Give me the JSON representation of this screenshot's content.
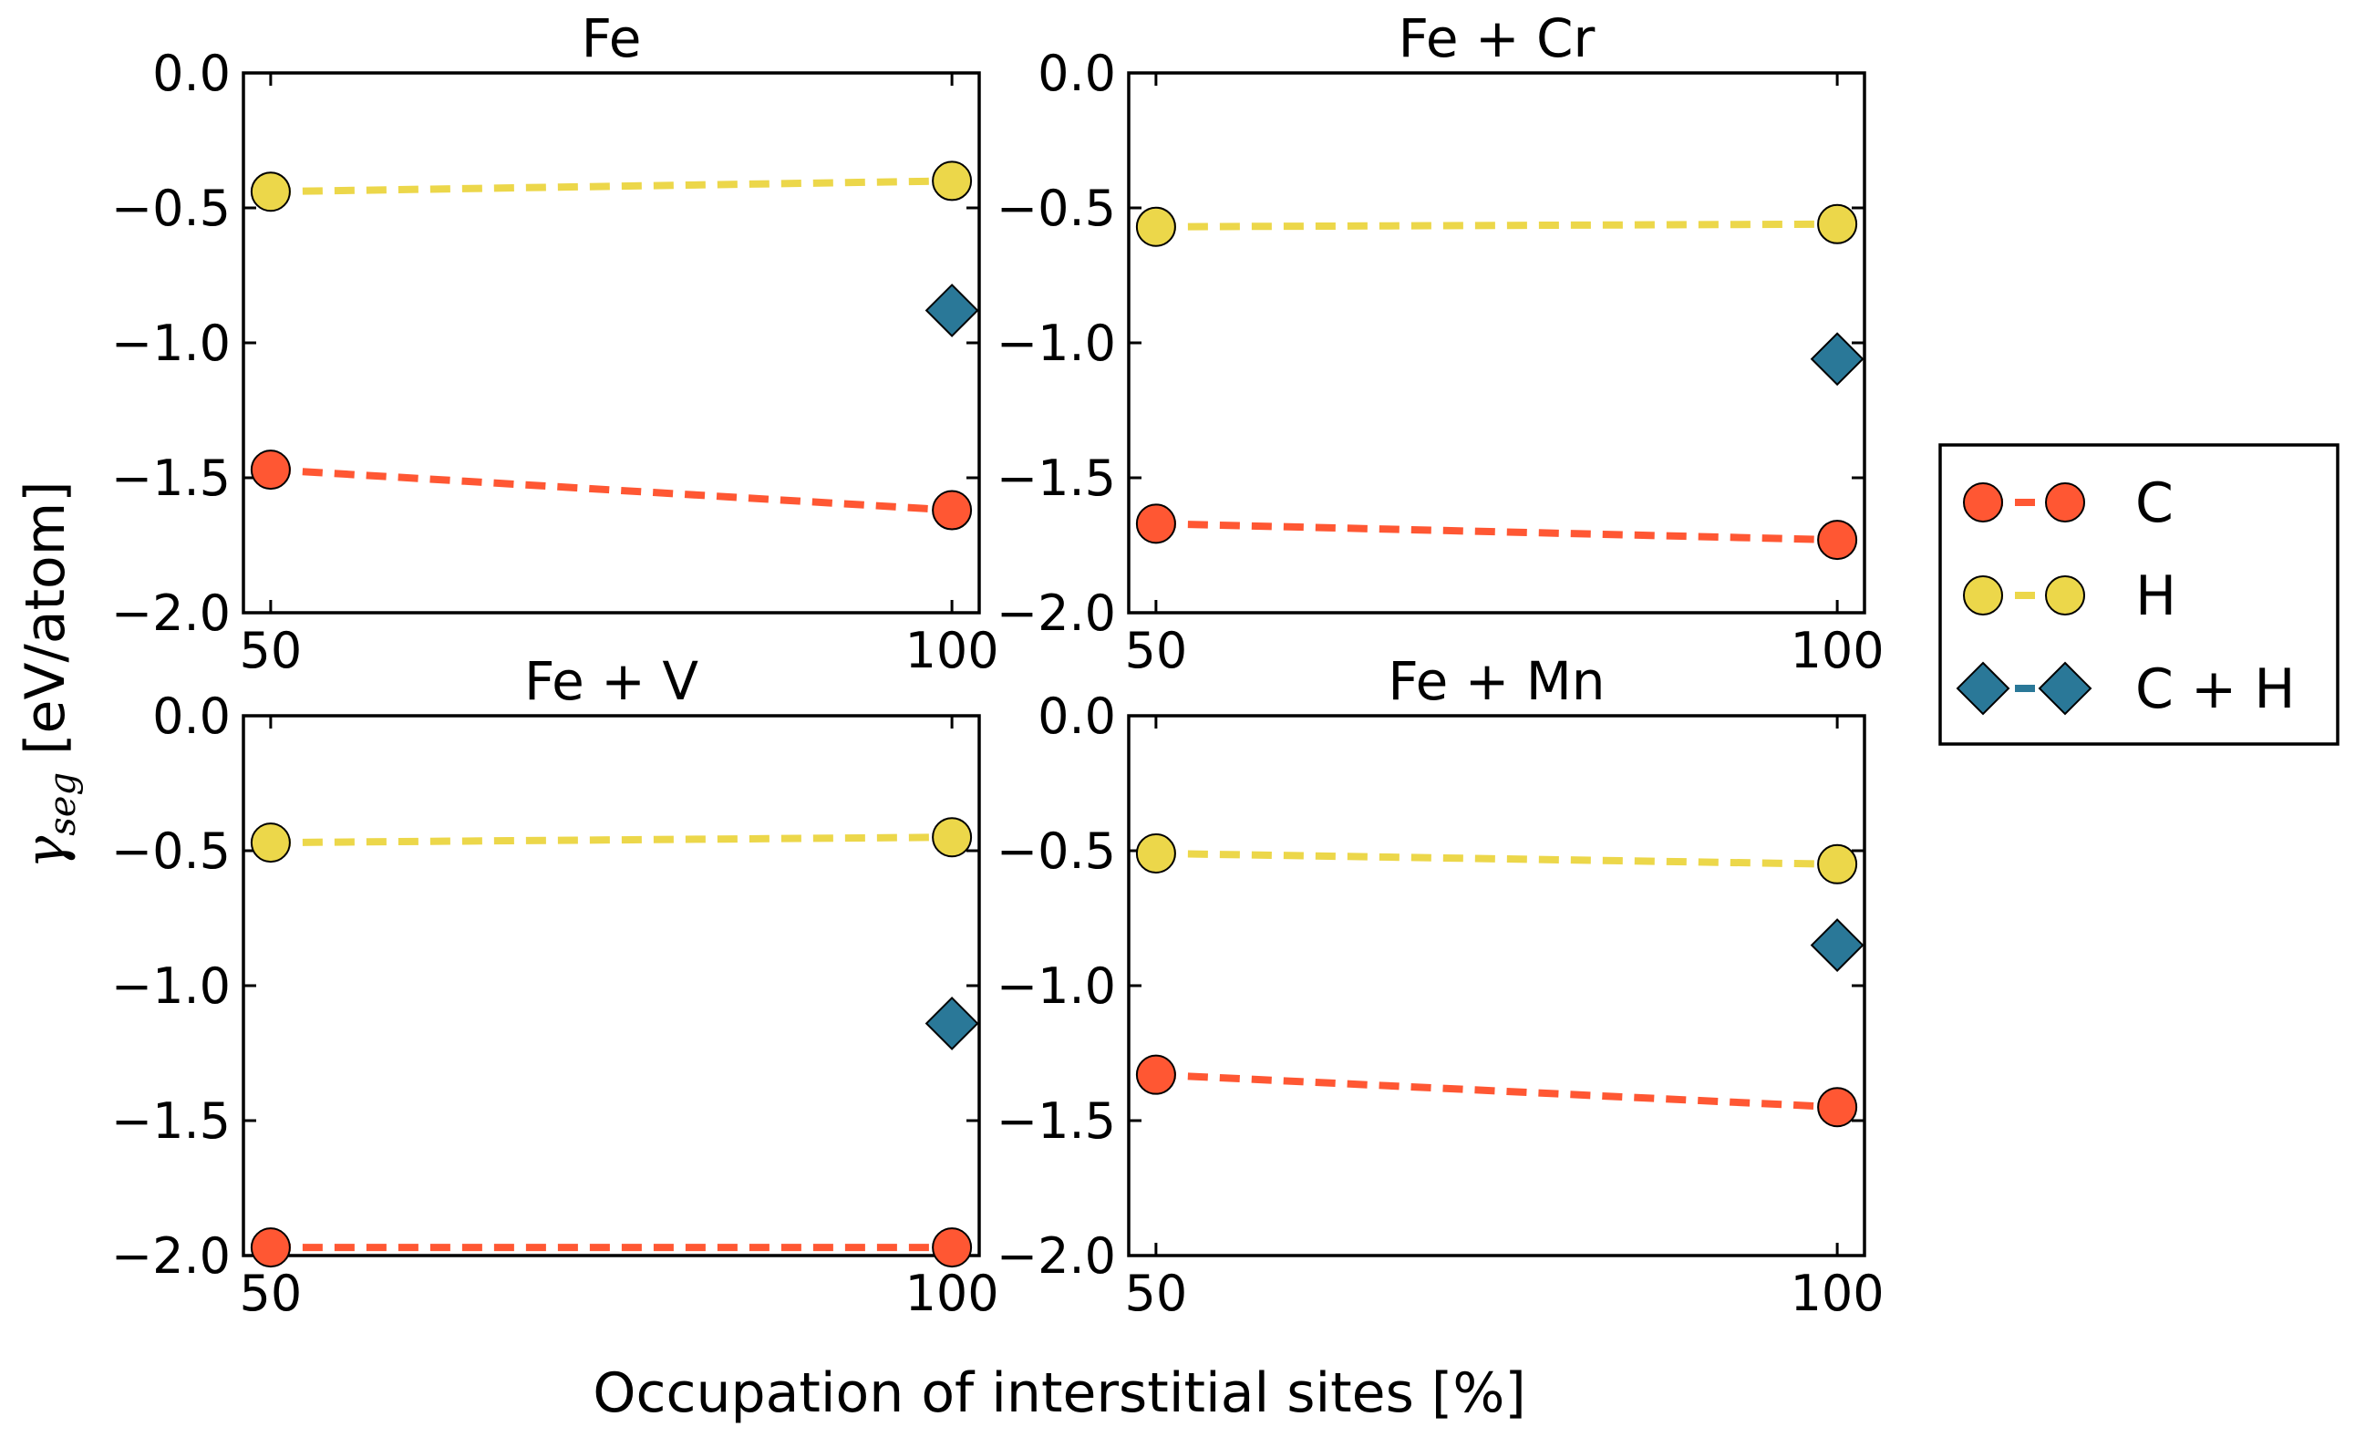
{
  "chart_data": {
    "type": "line",
    "xlabel": "Occupation of interstitial sites [%]",
    "ylabel_symbol": "γ",
    "ylabel_subscript": "seg",
    "ylabel_unit": " [eV/atom]",
    "xlim": [
      48,
      102
    ],
    "ylim": [
      -2.0,
      0.0
    ],
    "x_ticks": [
      50,
      100
    ],
    "x_tick_labels": [
      "50",
      "100"
    ],
    "y_ticks": [
      0.0,
      -0.5,
      -1.0,
      -1.5,
      -2.0
    ],
    "y_tick_labels": [
      "0.0",
      "−0.5",
      "−1.0",
      "−1.5",
      "−2.0"
    ],
    "legend": {
      "position": "right",
      "entries": [
        {
          "label": "C",
          "color": "#ff5733",
          "marker": "circle"
        },
        {
          "label": "H",
          "color": "#ecd74a",
          "marker": "circle"
        },
        {
          "label": "C + H",
          "color": "#2a7898",
          "marker": "diamond"
        }
      ]
    },
    "panels": [
      {
        "title": "Fe",
        "x": [
          50,
          100
        ],
        "series": [
          {
            "name": "C",
            "values": [
              -1.47,
              -1.62
            ]
          },
          {
            "name": "H",
            "values": [
              -0.44,
              -0.4
            ]
          },
          {
            "name": "C + H",
            "values": [
              null,
              -0.88
            ]
          }
        ]
      },
      {
        "title": "Fe + Cr",
        "x": [
          50,
          100
        ],
        "series": [
          {
            "name": "C",
            "values": [
              -1.67,
              -1.73
            ]
          },
          {
            "name": "H",
            "values": [
              -0.57,
              -0.56
            ]
          },
          {
            "name": "C + H",
            "values": [
              null,
              -1.06
            ]
          }
        ]
      },
      {
        "title": "Fe + V",
        "x": [
          50,
          100
        ],
        "series": [
          {
            "name": "C",
            "values": [
              -1.97,
              -1.97
            ]
          },
          {
            "name": "H",
            "values": [
              -0.47,
              -0.45
            ]
          },
          {
            "name": "C + H",
            "values": [
              null,
              -1.14
            ]
          }
        ]
      },
      {
        "title": "Fe + Mn",
        "x": [
          50,
          100
        ],
        "series": [
          {
            "name": "C",
            "values": [
              -1.33,
              -1.45
            ]
          },
          {
            "name": "H",
            "values": [
              -0.51,
              -0.55
            ]
          },
          {
            "name": "C + H",
            "values": [
              null,
              -0.85
            ]
          }
        ]
      }
    ]
  }
}
